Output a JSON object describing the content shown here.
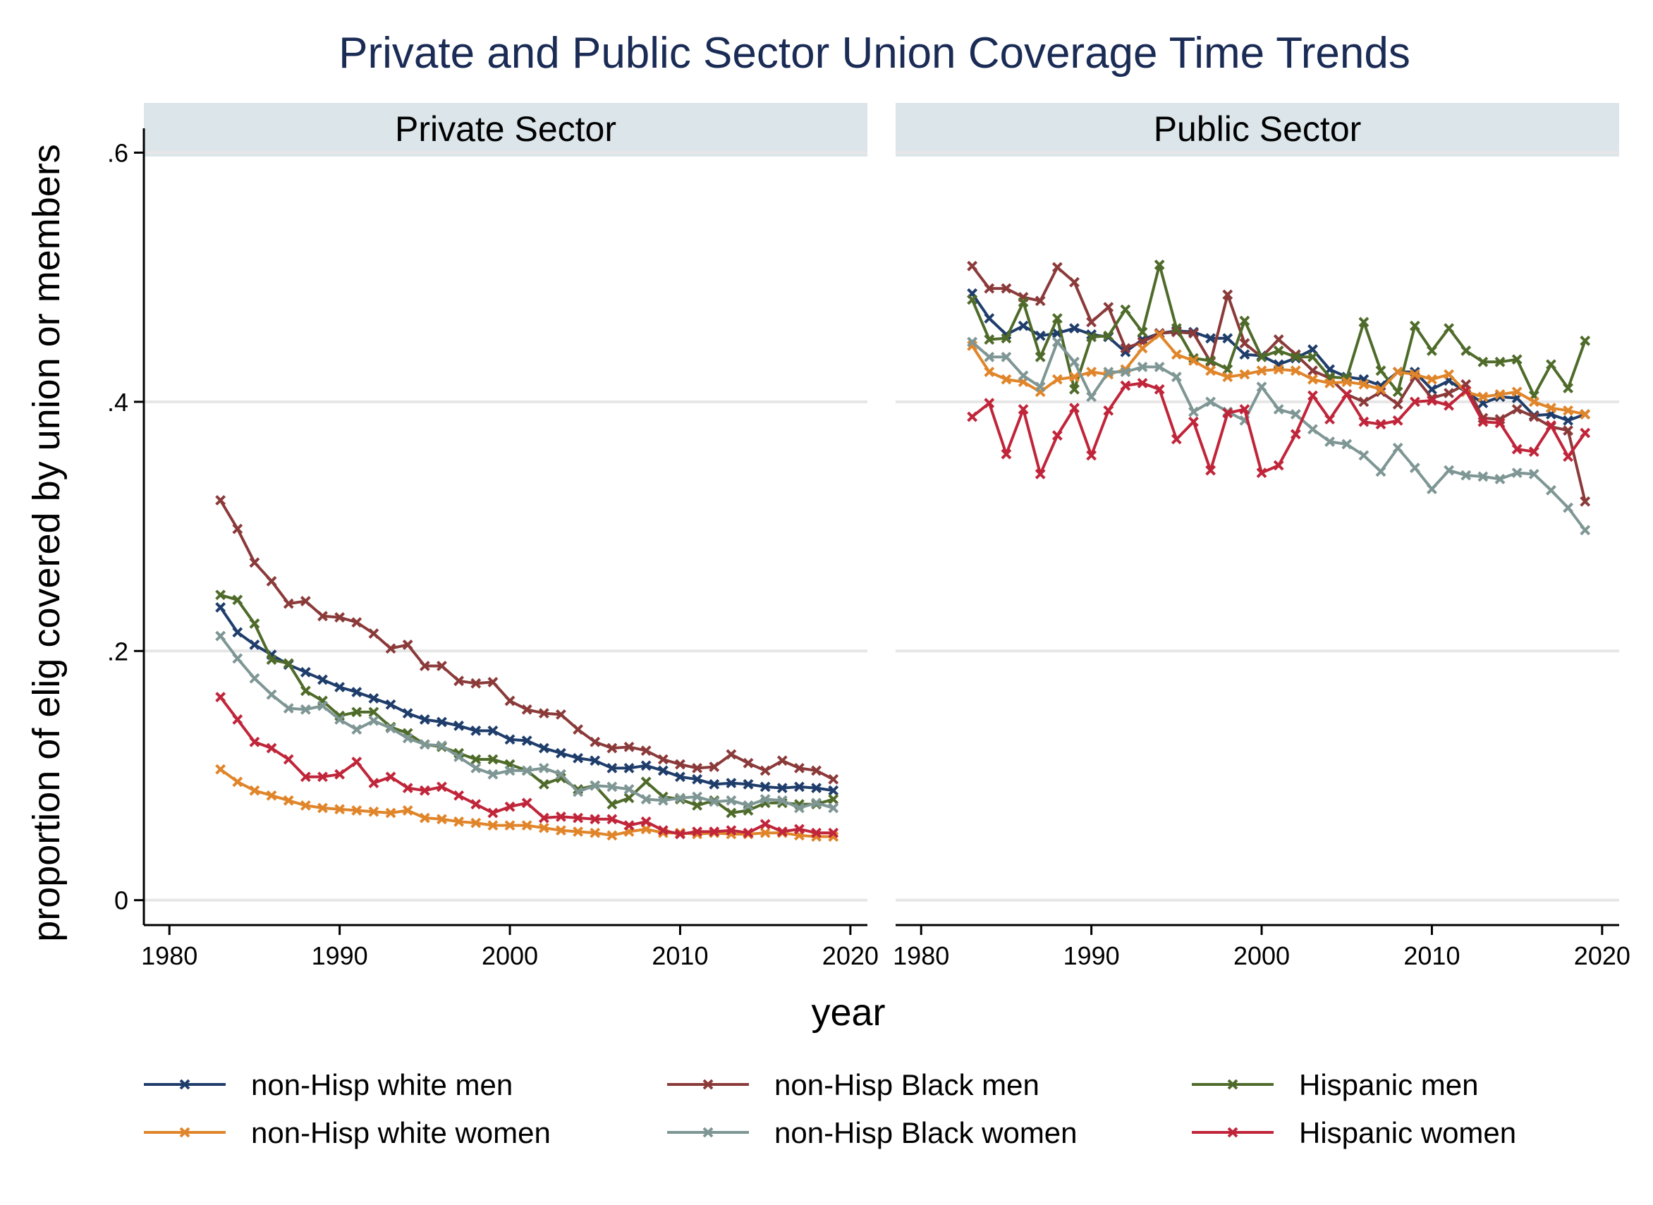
{
  "chart_data": {
    "type": "line",
    "title": "Private and Public Sector Union Coverage Time Trends",
    "xlabel": "year",
    "ylabel": "proportion of elig covered by union or members",
    "xlim": [
      1978.5,
      2021
    ],
    "ylim": [
      -0.02,
      0.615
    ],
    "xticks": [
      1980,
      1990,
      2000,
      2010,
      2020
    ],
    "xtick_labels": [
      "1980",
      "1990",
      "2000",
      "2010",
      "2020"
    ],
    "yticks": [
      0,
      0.2,
      0.4,
      0.6
    ],
    "ytick_labels": [
      "0",
      ".2",
      ".4",
      ".6"
    ],
    "grid": true,
    "legend_position": "bottom",
    "years": [
      1983,
      1984,
      1985,
      1986,
      1987,
      1988,
      1989,
      1990,
      1991,
      1992,
      1993,
      1994,
      1995,
      1996,
      1997,
      1998,
      1999,
      2000,
      2001,
      2002,
      2003,
      2004,
      2005,
      2006,
      2007,
      2008,
      2009,
      2010,
      2011,
      2012,
      2013,
      2014,
      2015,
      2016,
      2017,
      2018,
      2019
    ],
    "series_meta": [
      {
        "name": "non-Hisp white men",
        "color": "#1f3d6b"
      },
      {
        "name": "non-Hisp Black men",
        "color": "#8b3a3a"
      },
      {
        "name": "Hispanic men",
        "color": "#4f6b2a"
      },
      {
        "name": "non-Hisp white women",
        "color": "#e0852a"
      },
      {
        "name": "non-Hisp Black women",
        "color": "#7e9694"
      },
      {
        "name": "Hispanic women",
        "color": "#c0253a"
      }
    ],
    "panels": [
      {
        "label": "Private Sector",
        "series": [
          {
            "name": "non-Hisp white men",
            "values": [
              0.235,
              0.215,
              0.205,
              0.197,
              0.189,
              0.183,
              0.177,
              0.171,
              0.167,
              0.162,
              0.157,
              0.15,
              0.145,
              0.143,
              0.14,
              0.136,
              0.136,
              0.129,
              0.128,
              0.122,
              0.118,
              0.114,
              0.112,
              0.106,
              0.106,
              0.108,
              0.104,
              0.099,
              0.097,
              0.093,
              0.094,
              0.093,
              0.091,
              0.09,
              0.091,
              0.09,
              0.088
            ]
          },
          {
            "name": "non-Hisp Black men",
            "values": [
              0.321,
              0.298,
              0.271,
              0.256,
              0.238,
              0.24,
              0.228,
              0.227,
              0.223,
              0.214,
              0.202,
              0.205,
              0.188,
              0.188,
              0.176,
              0.174,
              0.175,
              0.16,
              0.153,
              0.15,
              0.149,
              0.137,
              0.127,
              0.122,
              0.123,
              0.12,
              0.113,
              0.109,
              0.106,
              0.107,
              0.117,
              0.11,
              0.104,
              0.112,
              0.106,
              0.104,
              0.097
            ]
          },
          {
            "name": "Hispanic men",
            "values": [
              0.245,
              0.241,
              0.222,
              0.193,
              0.19,
              0.168,
              0.16,
              0.148,
              0.151,
              0.151,
              0.139,
              0.134,
              0.125,
              0.123,
              0.118,
              0.113,
              0.113,
              0.109,
              0.104,
              0.093,
              0.098,
              0.089,
              0.092,
              0.077,
              0.082,
              0.095,
              0.083,
              0.081,
              0.076,
              0.08,
              0.07,
              0.072,
              0.078,
              0.078,
              0.077,
              0.077,
              0.081
            ]
          },
          {
            "name": "non-Hisp white women",
            "values": [
              0.105,
              0.095,
              0.088,
              0.084,
              0.08,
              0.076,
              0.074,
              0.073,
              0.072,
              0.071,
              0.07,
              0.072,
              0.066,
              0.065,
              0.063,
              0.062,
              0.06,
              0.06,
              0.06,
              0.058,
              0.056,
              0.055,
              0.054,
              0.052,
              0.055,
              0.057,
              0.054,
              0.054,
              0.053,
              0.054,
              0.053,
              0.053,
              0.054,
              0.054,
              0.052,
              0.051,
              0.051
            ]
          },
          {
            "name": "non-Hisp Black women",
            "values": [
              0.212,
              0.194,
              0.178,
              0.165,
              0.154,
              0.153,
              0.156,
              0.145,
              0.137,
              0.144,
              0.138,
              0.13,
              0.125,
              0.124,
              0.115,
              0.106,
              0.101,
              0.104,
              0.104,
              0.106,
              0.101,
              0.087,
              0.092,
              0.091,
              0.089,
              0.081,
              0.08,
              0.082,
              0.083,
              0.079,
              0.08,
              0.076,
              0.081,
              0.08,
              0.074,
              0.078,
              0.074
            ]
          },
          {
            "name": "Hispanic women",
            "values": [
              0.163,
              0.145,
              0.127,
              0.122,
              0.113,
              0.099,
              0.099,
              0.101,
              0.111,
              0.094,
              0.099,
              0.09,
              0.088,
              0.091,
              0.084,
              0.077,
              0.07,
              0.075,
              0.078,
              0.066,
              0.067,
              0.066,
              0.065,
              0.065,
              0.06,
              0.063,
              0.056,
              0.053,
              0.055,
              0.055,
              0.056,
              0.054,
              0.061,
              0.055,
              0.057,
              0.054,
              0.054
            ]
          }
        ]
      },
      {
        "label": "Public Sector",
        "series": [
          {
            "name": "non-Hisp white men",
            "values": [
              0.487,
              0.467,
              0.454,
              0.461,
              0.453,
              0.455,
              0.459,
              0.454,
              0.452,
              0.44,
              0.45,
              0.455,
              0.457,
              0.456,
              0.451,
              0.451,
              0.438,
              0.437,
              0.43,
              0.435,
              0.442,
              0.426,
              0.42,
              0.418,
              0.413,
              0.424,
              0.424,
              0.41,
              0.417,
              0.408,
              0.399,
              0.404,
              0.403,
              0.389,
              0.39,
              0.385,
              0.39
            ]
          },
          {
            "name": "non-Hisp Black men",
            "values": [
              0.509,
              0.491,
              0.491,
              0.484,
              0.481,
              0.508,
              0.496,
              0.464,
              0.476,
              0.443,
              0.448,
              0.455,
              0.456,
              0.455,
              0.432,
              0.486,
              0.447,
              0.436,
              0.45,
              0.438,
              0.425,
              0.419,
              0.406,
              0.4,
              0.408,
              0.398,
              0.42,
              0.403,
              0.407,
              0.414,
              0.387,
              0.386,
              0.394,
              0.388,
              0.38,
              0.377,
              0.32
            ]
          },
          {
            "name": "Hispanic men",
            "values": [
              0.482,
              0.45,
              0.451,
              0.48,
              0.436,
              0.467,
              0.41,
              0.452,
              0.453,
              0.474,
              0.456,
              0.51,
              0.459,
              0.435,
              0.433,
              0.426,
              0.465,
              0.436,
              0.441,
              0.436,
              0.436,
              0.42,
              0.419,
              0.464,
              0.425,
              0.408,
              0.461,
              0.441,
              0.459,
              0.441,
              0.432,
              0.432,
              0.434,
              0.405,
              0.43,
              0.411,
              0.449
            ]
          },
          {
            "name": "non-Hisp white women",
            "values": [
              0.445,
              0.424,
              0.418,
              0.416,
              0.408,
              0.418,
              0.42,
              0.424,
              0.422,
              0.426,
              0.443,
              0.454,
              0.438,
              0.433,
              0.425,
              0.42,
              0.422,
              0.425,
              0.426,
              0.425,
              0.418,
              0.415,
              0.416,
              0.414,
              0.41,
              0.424,
              0.422,
              0.418,
              0.422,
              0.408,
              0.404,
              0.406,
              0.408,
              0.4,
              0.395,
              0.393,
              0.39
            ]
          },
          {
            "name": "non-Hisp Black women",
            "values": [
              0.448,
              0.436,
              0.436,
              0.421,
              0.412,
              0.448,
              0.432,
              0.404,
              0.424,
              0.424,
              0.428,
              0.428,
              0.42,
              0.392,
              0.4,
              0.392,
              0.385,
              0.412,
              0.394,
              0.39,
              0.378,
              0.368,
              0.366,
              0.357,
              0.344,
              0.363,
              0.347,
              0.33,
              0.345,
              0.341,
              0.34,
              0.338,
              0.343,
              0.342,
              0.329,
              0.315,
              0.297
            ]
          },
          {
            "name": "Hispanic women",
            "values": [
              0.388,
              0.399,
              0.358,
              0.394,
              0.342,
              0.373,
              0.395,
              0.357,
              0.393,
              0.413,
              0.415,
              0.41,
              0.37,
              0.384,
              0.345,
              0.391,
              0.394,
              0.343,
              0.349,
              0.374,
              0.405,
              0.386,
              0.406,
              0.384,
              0.382,
              0.385,
              0.4,
              0.401,
              0.397,
              0.409,
              0.384,
              0.383,
              0.362,
              0.36,
              0.381,
              0.356,
              0.375
            ]
          }
        ]
      }
    ]
  },
  "legend": {
    "items": [
      {
        "name": "non-Hisp white men",
        "color": "#1f3d6b"
      },
      {
        "name": "non-Hisp Black men",
        "color": "#8b3a3a"
      },
      {
        "name": "Hispanic men",
        "color": "#4f6b2a"
      },
      {
        "name": "non-Hisp white women",
        "color": "#e0852a"
      },
      {
        "name": "non-Hisp Black women",
        "color": "#7e9694"
      },
      {
        "name": "Hispanic women",
        "color": "#c0253a"
      }
    ]
  }
}
